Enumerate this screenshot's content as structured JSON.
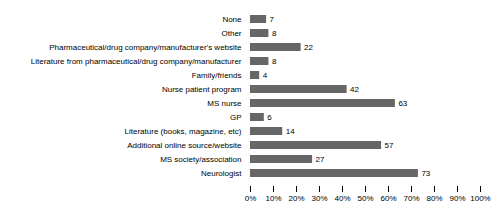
{
  "chart_data": {
    "type": "bar",
    "orientation": "horizontal",
    "categories": [
      "Neurologist",
      "MS society/association",
      "Additional online source/website",
      "Literature (books, magazine, etc)",
      "GP",
      "MS nurse",
      "Nurse patient program",
      "Family/friends",
      "Literature from pharmaceutical/drug company/manufacturer",
      "Pharmaceutical/drug company/manufacturer's website",
      "Other",
      "None"
    ],
    "values": [
      73,
      27,
      57,
      14,
      6,
      63,
      42,
      4,
      8,
      22,
      8,
      7
    ],
    "color": "#666666",
    "xlim": [
      0,
      100
    ],
    "xticks": [
      {
        "value": 0,
        "label": "0%"
      },
      {
        "value": 10,
        "label": "10%"
      },
      {
        "value": 20,
        "label": "20%"
      },
      {
        "value": 30,
        "label": "30%"
      },
      {
        "value": 40,
        "label": "40%"
      },
      {
        "value": 50,
        "label": "50%"
      },
      {
        "value": 60,
        "label": "60%"
      },
      {
        "value": 70,
        "label": "70%"
      },
      {
        "value": 80,
        "label": "80%"
      },
      {
        "value": 90,
        "label": "90%"
      },
      {
        "value": 100,
        "label": "100%"
      }
    ],
    "data_labels": true,
    "grid": false
  }
}
